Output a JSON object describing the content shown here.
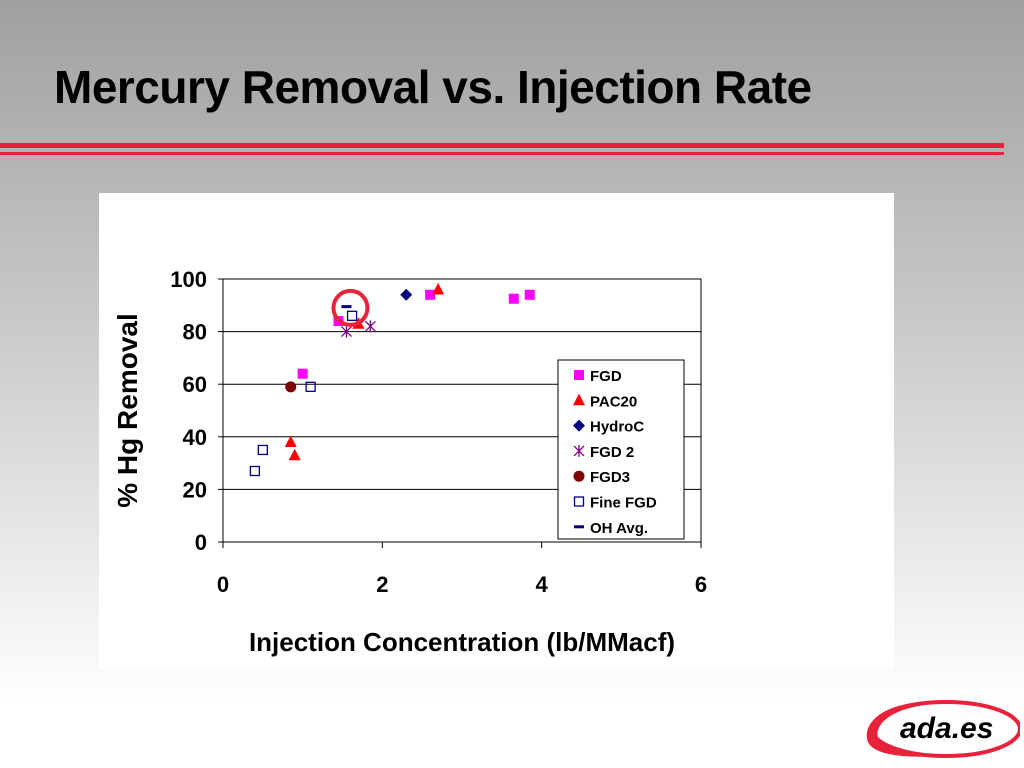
{
  "slide": {
    "title": "Mercury Removal vs. Injection Rate"
  },
  "logo": {
    "text": "ada.es"
  },
  "colors": {
    "accent_rule": "#e8223a",
    "highlight_circle": "#e8223a"
  },
  "chart_data": {
    "type": "scatter",
    "title": "",
    "xlabel": "Injection Concentration (lb/MMacf)",
    "ylabel": "% Hg Removal",
    "xlim": [
      0,
      6
    ],
    "ylim": [
      0,
      100
    ],
    "xticks": [
      "0",
      "2",
      "4",
      "6"
    ],
    "yticks": [
      "0",
      "20",
      "40",
      "60",
      "80",
      "100"
    ],
    "grid": "horizontal",
    "legend_position": "right",
    "series": [
      {
        "name": "FGD",
        "marker": "filled-square",
        "color": "#ff00ff",
        "points": [
          [
            1.0,
            64
          ],
          [
            1.45,
            84
          ],
          [
            2.6,
            94
          ],
          [
            3.65,
            92.5
          ],
          [
            3.85,
            94
          ]
        ]
      },
      {
        "name": "PAC20",
        "marker": "filled-triangle",
        "color": "#ff0000",
        "points": [
          [
            0.85,
            38
          ],
          [
            0.9,
            33
          ],
          [
            1.7,
            83
          ],
          [
            2.7,
            96
          ]
        ]
      },
      {
        "name": "HydroC",
        "marker": "filled-diamond",
        "color": "#000080",
        "points": [
          [
            2.3,
            94
          ]
        ]
      },
      {
        "name": "FGD 2",
        "marker": "asterisk",
        "color": "#800080",
        "points": [
          [
            1.55,
            80
          ],
          [
            1.85,
            82
          ]
        ]
      },
      {
        "name": "FGD3",
        "marker": "filled-circle",
        "color": "#800000",
        "points": [
          [
            0.85,
            59
          ]
        ]
      },
      {
        "name": "Fine FGD",
        "marker": "open-square",
        "color": "#000080",
        "points": [
          [
            0.4,
            27
          ],
          [
            0.5,
            35
          ],
          [
            1.1,
            59
          ],
          [
            1.62,
            86
          ]
        ]
      },
      {
        "name": "OH Avg.",
        "marker": "dash",
        "color": "#000080",
        "points": [
          [
            1.55,
            89.5
          ]
        ]
      }
    ],
    "annotations": [
      {
        "type": "circle",
        "color": "#e8223a",
        "center": [
          1.6,
          89
        ]
      }
    ]
  }
}
